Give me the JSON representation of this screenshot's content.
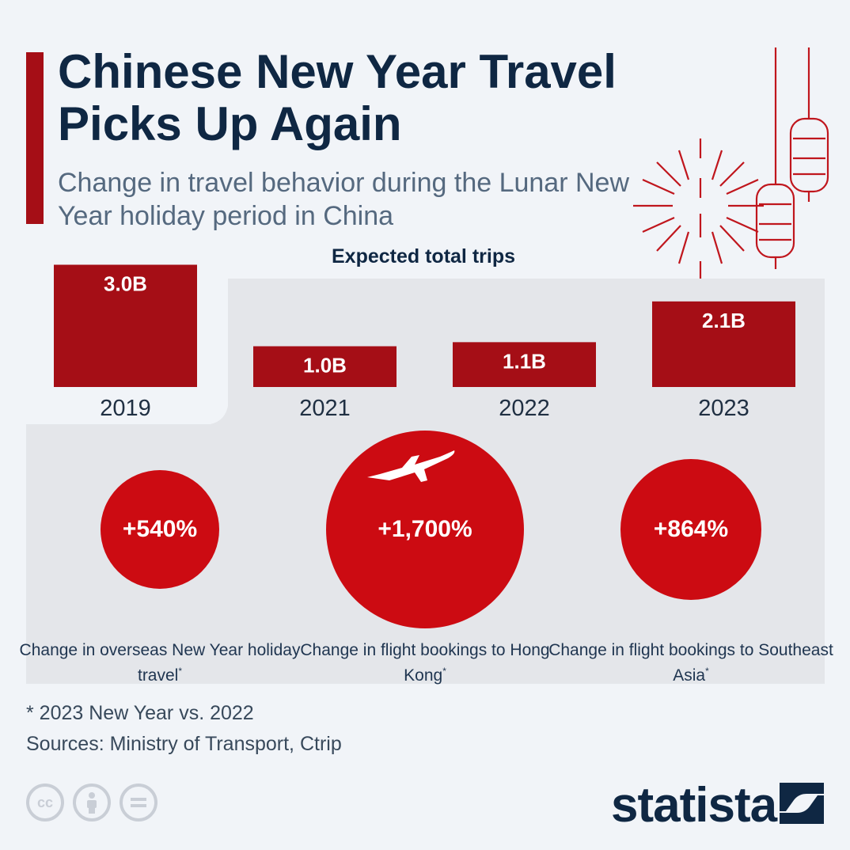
{
  "header": {
    "title": "Chinese New Year Travel Picks Up Again",
    "subtitle": "Change in travel behavior during the Lunar New Year holiday period in China"
  },
  "chart_data": {
    "type": "bar",
    "title": "Expected total trips",
    "categories": [
      "2019",
      "2021",
      "2022",
      "2023"
    ],
    "values": [
      3.0,
      1.0,
      1.1,
      2.1
    ],
    "value_labels": [
      "3.0B",
      "1.0B",
      "1.1B",
      "2.1B"
    ],
    "unit": "B",
    "bar_color": "#a50e16"
  },
  "stats": [
    {
      "value": "+540%",
      "caption": "Change in overseas New Year holiday travel",
      "marker": "*",
      "percent": 540
    },
    {
      "value": "+1,700%",
      "caption": "Change in flight bookings to Hong Kong",
      "marker": "*",
      "percent": 1700,
      "icon": "airplane-icon"
    },
    {
      "value": "+864%",
      "caption": "Change in flight bookings to Southeast Asia",
      "marker": "*",
      "percent": 864
    }
  ],
  "footer": {
    "note": "* 2023 New Year vs. 2022",
    "sources": "Sources: Ministry of Transport, Ctrip",
    "license_icons": [
      "cc-icon",
      "attribution-icon",
      "no-derivatives-icon"
    ],
    "cc_label": "cc",
    "brand": "statista"
  },
  "colors": {
    "accent": "#a50e16",
    "bubble": "#cc0b12",
    "navy": "#0f2743",
    "panel": "#e4e6ea",
    "background": "#f1f4f8"
  }
}
